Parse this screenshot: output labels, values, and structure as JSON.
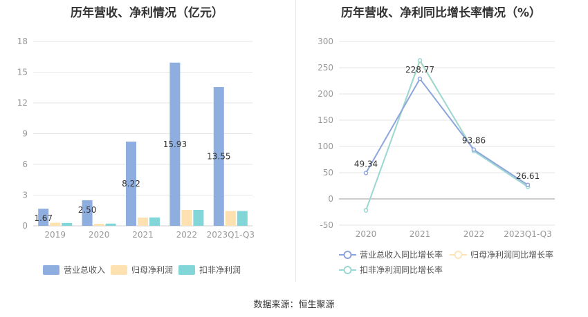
{
  "left_title": "历年营收、净利情况（亿元）",
  "right_title": "历年营收、净利同比增长率情况（%）",
  "source": "数据来源：恒生聚源",
  "colors": {
    "revenue": "#8eaee0",
    "parent_profit": "#fde1b0",
    "deducted_profit": "#82d6d8",
    "revenue_line": "#8da5dc",
    "parent_line": "#fbe6ba",
    "deducted_line": "#9ad8d5"
  },
  "chart_data": [
    {
      "type": "bar",
      "title": "历年营收、净利情况（亿元）",
      "categories": [
        "2019",
        "2020",
        "2021",
        "2022",
        "2023Q1-Q3"
      ],
      "ylim": [
        0,
        18
      ],
      "yticks": [
        "0",
        "3",
        "6",
        "9",
        "12",
        "15",
        "18"
      ],
      "grid": true,
      "legend_position": "bottom",
      "series": [
        {
          "name": "营业总收入",
          "values": [
            1.67,
            2.5,
            8.22,
            15.93,
            13.55
          ],
          "labels": [
            "1.67",
            "2.50",
            "8.22",
            "15.93",
            "13.55"
          ]
        },
        {
          "name": "归母净利润",
          "values": [
            0.3,
            0.2,
            0.8,
            1.55,
            1.45
          ]
        },
        {
          "name": "扣非净利润",
          "values": [
            0.28,
            0.22,
            0.82,
            1.55,
            1.45
          ]
        }
      ]
    },
    {
      "type": "line",
      "title": "历年营收、净利同比增长率情况（%）",
      "categories": [
        "2020",
        "2021",
        "2022",
        "2023Q1-Q3"
      ],
      "ylim": [
        -50,
        300
      ],
      "yticks": [
        "-50",
        "0",
        "50",
        "100",
        "150",
        "200",
        "250",
        "300"
      ],
      "grid": true,
      "legend_position": "bottom",
      "series": [
        {
          "name": "营业总收入同比增长率",
          "values": [
            49.34,
            228.77,
            93.86,
            26.61
          ],
          "labels": [
            "49.34",
            "228.77",
            "93.86",
            "26.61"
          ]
        },
        {
          "name": "归母净利润同比增长率",
          "values": [
            -21,
            262,
            93,
            24
          ]
        },
        {
          "name": "扣非净利润同比增长率",
          "values": [
            -22,
            264,
            91,
            23
          ]
        }
      ]
    }
  ]
}
